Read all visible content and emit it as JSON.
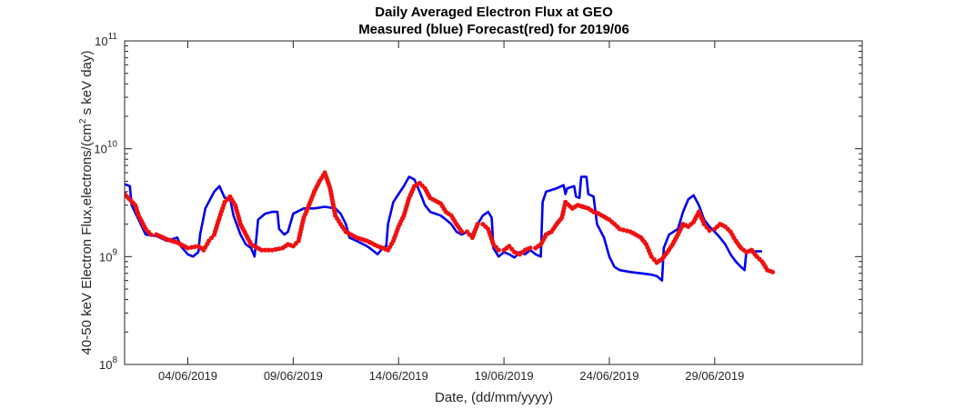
{
  "chart_data": {
    "type": "line",
    "title": [
      "Daily Averaged Electron Flux at GEO",
      "Measured (blue) Forecast(red) for 2019/06"
    ],
    "xlabel": "Date, (dd/mm/yyyy)",
    "ylabel_parts": [
      "40-50 keV Electron Flux,electrons/(cm",
      "2",
      " s keV day)"
    ],
    "y_scale": "log",
    "ylim": [
      100000000.0,
      100000000000.0
    ],
    "y_ticks": [
      {
        "value": 100000000.0,
        "base": "10",
        "exp": "8"
      },
      {
        "value": 1000000000.0,
        "base": "10",
        "exp": "9"
      },
      {
        "value": 10000000000.0,
        "base": "10",
        "exp": "10"
      },
      {
        "value": 100000000000.0,
        "base": "10",
        "exp": "11"
      }
    ],
    "xlim": [
      "2019-06-01",
      "2019-07-06"
    ],
    "x_ticks": [
      {
        "value": "2019-06-04",
        "label": "04/06/2019"
      },
      {
        "value": "2019-06-09",
        "label": "09/06/2019"
      },
      {
        "value": "2019-06-14",
        "label": "14/06/2019"
      },
      {
        "value": "2019-06-19",
        "label": "19/06/2019"
      },
      {
        "value": "2019-06-24",
        "label": "24/06/2019"
      },
      {
        "value": "2019-06-29",
        "label": "29/06/2019"
      }
    ],
    "grid": false,
    "series": [
      {
        "name": "Measured",
        "style": "line",
        "color": "#0000ee",
        "points": [
          [
            "2019-06-01T00:00",
            4700000000.0
          ],
          [
            "2019-06-01T06:00",
            4500000000.0
          ],
          [
            "2019-06-01T08:00",
            3000000000.0
          ],
          [
            "2019-06-01T16:00",
            2200000000.0
          ],
          [
            "2019-06-02T00:00",
            1600000000.0
          ],
          [
            "2019-06-02T12:00",
            1550000000.0
          ],
          [
            "2019-06-03T00:00",
            1400000000.0
          ],
          [
            "2019-06-03T12:00",
            1500000000.0
          ],
          [
            "2019-06-03T16:00",
            1250000000.0
          ],
          [
            "2019-06-04T00:00",
            1050000000.0
          ],
          [
            "2019-06-04T06:00",
            1000000000.0
          ],
          [
            "2019-06-04T12:00",
            1100000000.0
          ],
          [
            "2019-06-04T14:00",
            1600000000.0
          ],
          [
            "2019-06-04T20:00",
            2800000000.0
          ],
          [
            "2019-06-05T06:00",
            4000000000.0
          ],
          [
            "2019-06-05T12:00",
            4500000000.0
          ],
          [
            "2019-06-05T18:00",
            3500000000.0
          ],
          [
            "2019-06-06T00:00",
            3500000000.0
          ],
          [
            "2019-06-06T04:00",
            2400000000.0
          ],
          [
            "2019-06-06T12:00",
            1600000000.0
          ],
          [
            "2019-06-06T18:00",
            1300000000.0
          ],
          [
            "2019-06-07T00:00",
            1200000000.0
          ],
          [
            "2019-06-07T04:00",
            1000000000.0
          ],
          [
            "2019-06-07T08:00",
            2200000000.0
          ],
          [
            "2019-06-07T16:00",
            2500000000.0
          ],
          [
            "2019-06-08T00:00",
            2600000000.0
          ],
          [
            "2019-06-08T06:00",
            2600000000.0
          ],
          [
            "2019-06-08T08:00",
            1800000000.0
          ],
          [
            "2019-06-08T14:00",
            1600000000.0
          ],
          [
            "2019-06-08T18:00",
            1700000000.0
          ],
          [
            "2019-06-09T00:00",
            2500000000.0
          ],
          [
            "2019-06-09T12:00",
            2800000000.0
          ],
          [
            "2019-06-10T00:00",
            2800000000.0
          ],
          [
            "2019-06-10T12:00",
            2900000000.0
          ],
          [
            "2019-06-11T00:00",
            2800000000.0
          ],
          [
            "2019-06-11T06:00",
            2500000000.0
          ],
          [
            "2019-06-11T12:00",
            2000000000.0
          ],
          [
            "2019-06-11T16:00",
            1500000000.0
          ],
          [
            "2019-06-12T00:00",
            1400000000.0
          ],
          [
            "2019-06-12T12:00",
            1250000000.0
          ],
          [
            "2019-06-12T18:00",
            1150000000.0
          ],
          [
            "2019-06-13T00:00",
            1050000000.0
          ],
          [
            "2019-06-13T06:00",
            1200000000.0
          ],
          [
            "2019-06-13T10:00",
            1250000000.0
          ],
          [
            "2019-06-13T12:00",
            2000000000.0
          ],
          [
            "2019-06-13T18:00",
            3200000000.0
          ],
          [
            "2019-06-14T00:00",
            3800000000.0
          ],
          [
            "2019-06-14T06:00",
            4500000000.0
          ],
          [
            "2019-06-14T12:00",
            5500000000.0
          ],
          [
            "2019-06-14T18:00",
            5200000000.0
          ],
          [
            "2019-06-15T00:00",
            4000000000.0
          ],
          [
            "2019-06-15T06:00",
            3000000000.0
          ],
          [
            "2019-06-15T12:00",
            2600000000.0
          ],
          [
            "2019-06-16T00:00",
            2400000000.0
          ],
          [
            "2019-06-16T06:00",
            2200000000.0
          ],
          [
            "2019-06-16T12:00",
            2000000000.0
          ],
          [
            "2019-06-16T18:00",
            1700000000.0
          ],
          [
            "2019-06-17T00:00",
            1600000000.0
          ],
          [
            "2019-06-17T06:00",
            1700000000.0
          ],
          [
            "2019-06-17T12:00",
            1500000000.0
          ],
          [
            "2019-06-17T18:00",
            2000000000.0
          ],
          [
            "2019-06-18T00:00",
            2400000000.0
          ],
          [
            "2019-06-18T06:00",
            2600000000.0
          ],
          [
            "2019-06-18T10:00",
            2300000000.0
          ],
          [
            "2019-06-18T12:00",
            1200000000.0
          ],
          [
            "2019-06-18T18:00",
            1000000000.0
          ],
          [
            "2019-06-19T00:00",
            1100000000.0
          ],
          [
            "2019-06-19T06:00",
            1050000000.0
          ],
          [
            "2019-06-19T12:00",
            980000000.0
          ],
          [
            "2019-06-19T18:00",
            1100000000.0
          ],
          [
            "2019-06-20T00:00",
            1050000000.0
          ],
          [
            "2019-06-20T06:00",
            1150000000.0
          ],
          [
            "2019-06-20T12:00",
            1050000000.0
          ],
          [
            "2019-06-20T18:00",
            1000000000.0
          ],
          [
            "2019-06-20T20:00",
            3200000000.0
          ],
          [
            "2019-06-21T00:00",
            4000000000.0
          ],
          [
            "2019-06-21T12:00",
            4300000000.0
          ],
          [
            "2019-06-21T20:00",
            4600000000.0
          ],
          [
            "2019-06-21T22:00",
            3800000000.0
          ],
          [
            "2019-06-22T00:00",
            4300000000.0
          ],
          [
            "2019-06-22T08:00",
            4500000000.0
          ],
          [
            "2019-06-22T10:00",
            3600000000.0
          ],
          [
            "2019-06-22T14:00",
            3500000000.0
          ],
          [
            "2019-06-22T16:00",
            5500000000.0
          ],
          [
            "2019-06-22T22:00",
            5500000000.0
          ],
          [
            "2019-06-23T00:00",
            3800000000.0
          ],
          [
            "2019-06-23T06:00",
            3600000000.0
          ],
          [
            "2019-06-23T10:00",
            2000000000.0
          ],
          [
            "2019-06-23T18:00",
            1500000000.0
          ],
          [
            "2019-06-24T00:00",
            1000000000.0
          ],
          [
            "2019-06-24T06:00",
            800000000.0
          ],
          [
            "2019-06-24T12:00",
            750000000.0
          ],
          [
            "2019-06-25T00:00",
            720000000.0
          ],
          [
            "2019-06-25T12:00",
            700000000.0
          ],
          [
            "2019-06-26T00:00",
            680000000.0
          ],
          [
            "2019-06-26T06:00",
            660000000.0
          ],
          [
            "2019-06-26T12:00",
            600000000.0
          ],
          [
            "2019-06-26T14:00",
            1200000000.0
          ],
          [
            "2019-06-26T20:00",
            1600000000.0
          ],
          [
            "2019-06-27T06:00",
            1800000000.0
          ],
          [
            "2019-06-27T12:00",
            2600000000.0
          ],
          [
            "2019-06-27T18:00",
            3400000000.0
          ],
          [
            "2019-06-28T00:00",
            3700000000.0
          ],
          [
            "2019-06-28T06:00",
            3000000000.0
          ],
          [
            "2019-06-28T12:00",
            2200000000.0
          ],
          [
            "2019-06-28T18:00",
            1900000000.0
          ],
          [
            "2019-06-29T00:00",
            1700000000.0
          ],
          [
            "2019-06-29T06:00",
            1500000000.0
          ],
          [
            "2019-06-29T12:00",
            1300000000.0
          ],
          [
            "2019-06-29T18:00",
            1050000000.0
          ],
          [
            "2019-06-30T00:00",
            900000000.0
          ],
          [
            "2019-06-30T06:00",
            800000000.0
          ],
          [
            "2019-06-30T10:00",
            750000000.0
          ],
          [
            "2019-06-30T12:00",
            1100000000.0
          ],
          [
            "2019-06-30T18:00",
            1120000000.0
          ],
          [
            "2019-07-01T06:00",
            1120000000.0
          ]
        ]
      },
      {
        "name": "Forecast",
        "style": "markers",
        "color": "#ee1111",
        "points": [
          [
            "2019-06-01T00:00",
            3800000000.0
          ],
          [
            "2019-06-01T12:00",
            3000000000.0
          ],
          [
            "2019-06-01T16:00",
            2400000000.0
          ],
          [
            "2019-06-02T00:00",
            1800000000.0
          ],
          [
            "2019-06-02T06:00",
            1600000000.0
          ],
          [
            "2019-06-02T12:00",
            1600000000.0
          ],
          [
            "2019-06-03T00:00",
            1450000000.0
          ],
          [
            "2019-06-03T12:00",
            1350000000.0
          ],
          [
            "2019-06-04T00:00",
            1200000000.0
          ],
          [
            "2019-06-04T12:00",
            1250000000.0
          ],
          [
            "2019-06-04T18:00",
            1150000000.0
          ],
          [
            "2019-06-05T00:00",
            1400000000.0
          ],
          [
            "2019-06-05T06:00",
            1600000000.0
          ],
          [
            "2019-06-05T12:00",
            2300000000.0
          ],
          [
            "2019-06-05T18:00",
            3200000000.0
          ],
          [
            "2019-06-06T00:00",
            3600000000.0
          ],
          [
            "2019-06-06T06:00",
            3000000000.0
          ],
          [
            "2019-06-06T12:00",
            2000000000.0
          ],
          [
            "2019-06-07T00:00",
            1300000000.0
          ],
          [
            "2019-06-07T12:00",
            1150000000.0
          ],
          [
            "2019-06-08T00:00",
            1150000000.0
          ],
          [
            "2019-06-08T12:00",
            1200000000.0
          ],
          [
            "2019-06-08T18:00",
            1300000000.0
          ],
          [
            "2019-06-09T00:00",
            1250000000.0
          ],
          [
            "2019-06-09T06:00",
            1400000000.0
          ],
          [
            "2019-06-09T12:00",
            2300000000.0
          ],
          [
            "2019-06-09T18:00",
            3000000000.0
          ],
          [
            "2019-06-10T00:00",
            4000000000.0
          ],
          [
            "2019-06-10T06:00",
            5000000000.0
          ],
          [
            "2019-06-10T12:00",
            6000000000.0
          ],
          [
            "2019-06-10T18:00",
            4300000000.0
          ],
          [
            "2019-06-11T00:00",
            2400000000.0
          ],
          [
            "2019-06-11T06:00",
            2000000000.0
          ],
          [
            "2019-06-11T12:00",
            1700000000.0
          ],
          [
            "2019-06-12T00:00",
            1500000000.0
          ],
          [
            "2019-06-12T12:00",
            1400000000.0
          ],
          [
            "2019-06-13T00:00",
            1250000000.0
          ],
          [
            "2019-06-13T06:00",
            1200000000.0
          ],
          [
            "2019-06-13T12:00",
            1150000000.0
          ],
          [
            "2019-06-13T18:00",
            1400000000.0
          ],
          [
            "2019-06-14T00:00",
            1900000000.0
          ],
          [
            "2019-06-14T06:00",
            2400000000.0
          ],
          [
            "2019-06-14T12:00",
            3500000000.0
          ],
          [
            "2019-06-14T18:00",
            4500000000.0
          ],
          [
            "2019-06-15T00:00",
            4800000000.0
          ],
          [
            "2019-06-15T06:00",
            4300000000.0
          ],
          [
            "2019-06-15T12:00",
            3500000000.0
          ],
          [
            "2019-06-16T00:00",
            3100000000.0
          ],
          [
            "2019-06-16T06:00",
            2600000000.0
          ],
          [
            "2019-06-16T12:00",
            2400000000.0
          ],
          [
            "2019-06-16T18:00",
            2000000000.0
          ],
          [
            "2019-06-17T00:00",
            1700000000.0
          ],
          [
            "2019-06-17T06:00",
            1700000000.0
          ],
          [
            "2019-06-17T12:00",
            1500000000.0
          ],
          [
            "2019-06-17T18:00",
            2000000000.0
          ],
          [
            "2019-06-18T00:00",
            2000000000.0
          ],
          [
            "2019-06-18T06:00",
            1800000000.0
          ],
          [
            "2019-06-18T12:00",
            1300000000.0
          ],
          [
            "2019-06-18T18:00",
            1150000000.0
          ],
          [
            "2019-06-19T00:00",
            1150000000.0
          ],
          [
            "2019-06-19T06:00",
            1250000000.0
          ],
          [
            "2019-06-19T12:00",
            1100000000.0
          ],
          [
            "2019-06-19T18:00",
            1050000000.0
          ],
          [
            "2019-06-20T00:00",
            1150000000.0
          ],
          [
            "2019-06-20T06:00",
            1200000000.0
          ],
          [
            "2019-06-20T12:00",
            1200000000.0
          ],
          [
            "2019-06-20T18:00",
            1300000000.0
          ],
          [
            "2019-06-21T00:00",
            1600000000.0
          ],
          [
            "2019-06-21T06:00",
            1700000000.0
          ],
          [
            "2019-06-21T12:00",
            2000000000.0
          ],
          [
            "2019-06-21T18:00",
            2300000000.0
          ],
          [
            "2019-06-21T22:00",
            3200000000.0
          ],
          [
            "2019-06-22T06:00",
            2800000000.0
          ],
          [
            "2019-06-22T12:00",
            3000000000.0
          ],
          [
            "2019-06-23T00:00",
            2800000000.0
          ],
          [
            "2019-06-23T06:00",
            2600000000.0
          ],
          [
            "2019-06-23T12:00",
            2500000000.0
          ],
          [
            "2019-06-24T00:00",
            2200000000.0
          ],
          [
            "2019-06-24T06:00",
            2000000000.0
          ],
          [
            "2019-06-24T12:00",
            1800000000.0
          ],
          [
            "2019-06-25T00:00",
            1700000000.0
          ],
          [
            "2019-06-25T06:00",
            1600000000.0
          ],
          [
            "2019-06-25T12:00",
            1500000000.0
          ],
          [
            "2019-06-25T18:00",
            1300000000.0
          ],
          [
            "2019-06-26T00:00",
            1000000000.0
          ],
          [
            "2019-06-26T06:00",
            880000000.0
          ],
          [
            "2019-06-26T12:00",
            950000000.0
          ],
          [
            "2019-06-26T18:00",
            1100000000.0
          ],
          [
            "2019-06-27T00:00",
            1300000000.0
          ],
          [
            "2019-06-27T06:00",
            1600000000.0
          ],
          [
            "2019-06-27T12:00",
            2000000000.0
          ],
          [
            "2019-06-27T18:00",
            1900000000.0
          ],
          [
            "2019-06-28T00:00",
            2100000000.0
          ],
          [
            "2019-06-28T06:00",
            2600000000.0
          ],
          [
            "2019-06-28T12:00",
            2000000000.0
          ],
          [
            "2019-06-28T18:00",
            1750000000.0
          ],
          [
            "2019-06-29T00:00",
            1800000000.0
          ],
          [
            "2019-06-29T06:00",
            2000000000.0
          ],
          [
            "2019-06-29T12:00",
            1900000000.0
          ],
          [
            "2019-06-29T18:00",
            1700000000.0
          ],
          [
            "2019-06-30T00:00",
            1400000000.0
          ],
          [
            "2019-06-30T06:00",
            1200000000.0
          ],
          [
            "2019-06-30T12:00",
            1100000000.0
          ],
          [
            "2019-06-30T18:00",
            1150000000.0
          ],
          [
            "2019-07-01T00:00",
            1000000000.0
          ],
          [
            "2019-07-01T06:00",
            900000000.0
          ],
          [
            "2019-07-01T12:00",
            750000000.0
          ],
          [
            "2019-07-01T18:00",
            720000000.0
          ]
        ]
      }
    ]
  }
}
